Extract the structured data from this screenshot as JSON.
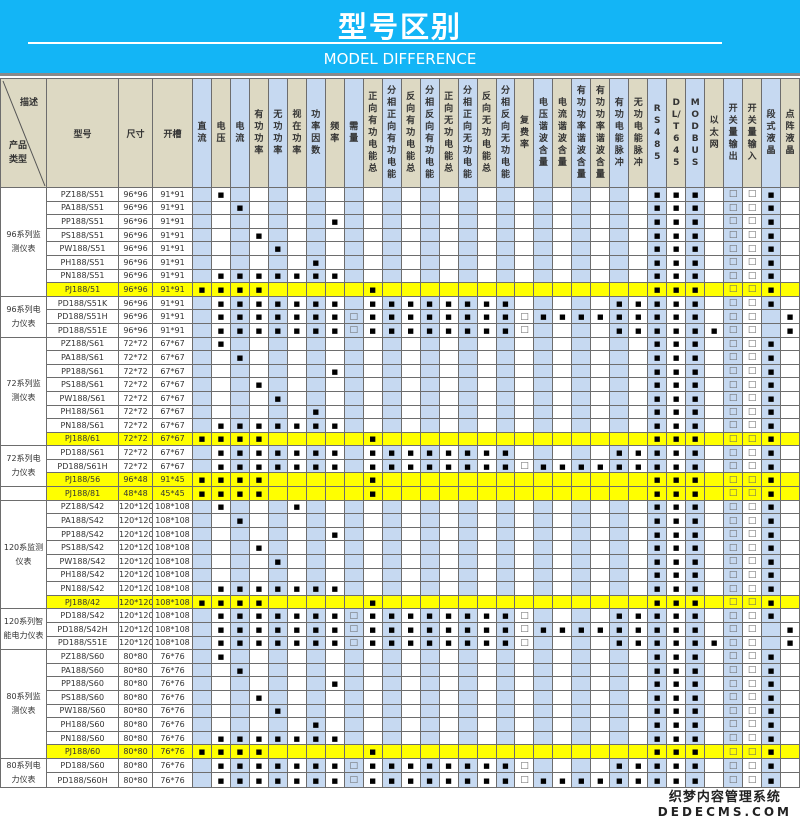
{
  "header": {
    "title": "型号区别",
    "subtitle": "MODEL DIFFERENCE"
  },
  "table": {
    "corner": {
      "description": "描述",
      "product_type": "产品类型"
    },
    "fixed_columns": [
      "型号",
      "尺寸",
      "开槽"
    ],
    "feature_columns": [
      "直流",
      "电压",
      "电流",
      "有功功率",
      "无功功率",
      "视在功率",
      "功率因数",
      "频率",
      "需量",
      "正向有功电能总",
      "分相正向有功电能",
      "反向有功电能总",
      "分相反向有功电能",
      "正向无功电能总",
      "分相正向无功电能",
      "反向无功电能总",
      "分相反向无功电能",
      "复费率",
      "电压谐波含量",
      "电流谐波含量",
      "有功功率谐波含量",
      "有功功率谐波含量",
      "有功电能脉冲",
      "无功电能脉冲",
      "RS485",
      "DL/T645",
      "MODBUS",
      "以太网",
      "开关量输出",
      "开关量输入",
      "段式液晶",
      "点阵液晶"
    ],
    "symbols": {
      "standard": "■",
      "optional": "□"
    },
    "colors": {
      "banner": "#13b5f6",
      "header": "#ddd9c3",
      "alt_column": "#c6d9f1",
      "highlight": "#ffff00"
    },
    "groups": [
      {
        "label": "96系列监测仪表",
        "rows": [
          {
            "model": "PZ188/S51",
            "size": "96*96",
            "cutout": "91*91",
            "std": [
              1,
              24,
              25,
              26,
              30
            ],
            "opt": [
              28,
              29
            ]
          },
          {
            "model": "PA188/S51",
            "size": "96*96",
            "cutout": "91*91",
            "std": [
              2,
              24,
              25,
              26,
              30
            ],
            "opt": [
              28,
              29
            ]
          },
          {
            "model": "PP188/S51",
            "size": "96*96",
            "cutout": "91*91",
            "std": [
              7,
              24,
              25,
              26,
              30
            ],
            "opt": [
              28,
              29
            ]
          },
          {
            "model": "PS188/S51",
            "size": "96*96",
            "cutout": "91*91",
            "std": [
              3,
              24,
              25,
              26,
              30
            ],
            "opt": [
              28,
              29
            ]
          },
          {
            "model": "PW188/S51",
            "size": "96*96",
            "cutout": "91*91",
            "std": [
              4,
              24,
              25,
              26,
              30
            ],
            "opt": [
              28,
              29
            ]
          },
          {
            "model": "PH188/S51",
            "size": "96*96",
            "cutout": "91*91",
            "std": [
              6,
              24,
              25,
              26,
              30
            ],
            "opt": [
              28,
              29
            ]
          },
          {
            "model": "PN188/S51",
            "size": "96*96",
            "cutout": "91*91",
            "std": [
              1,
              2,
              3,
              4,
              5,
              6,
              7,
              24,
              25,
              26,
              30
            ],
            "opt": [
              28,
              29
            ]
          },
          {
            "model": "PJ188/51",
            "size": "96*96",
            "cutout": "91*91",
            "highlight": true,
            "std": [
              0,
              1,
              2,
              3,
              9,
              24,
              25,
              26,
              30
            ],
            "opt": [
              28,
              29
            ]
          }
        ]
      },
      {
        "label": "96系列电力仪表",
        "rows": [
          {
            "model": "PD188/S51K",
            "size": "96*96",
            "cutout": "91*91",
            "std": [
              1,
              2,
              3,
              4,
              5,
              6,
              7,
              9,
              10,
              11,
              12,
              13,
              14,
              15,
              16,
              22,
              23,
              24,
              25,
              26,
              30
            ],
            "opt": [
              28,
              29
            ]
          },
          {
            "model": "PD188/S51H",
            "size": "96*96",
            "cutout": "91*91",
            "std": [
              1,
              2,
              3,
              4,
              5,
              6,
              7,
              9,
              10,
              11,
              12,
              13,
              14,
              15,
              16,
              18,
              19,
              20,
              21,
              22,
              23,
              24,
              25,
              26,
              31
            ],
            "opt": [
              8,
              17,
              28,
              29
            ]
          },
          {
            "model": "PD188/S51E",
            "size": "96*96",
            "cutout": "91*91",
            "std": [
              1,
              2,
              3,
              4,
              5,
              6,
              7,
              9,
              10,
              11,
              12,
              13,
              14,
              15,
              16,
              22,
              23,
              24,
              25,
              26,
              27,
              31
            ],
            "opt": [
              8,
              17,
              28,
              29
            ]
          }
        ]
      },
      {
        "label": "72系列监测仪表",
        "rows": [
          {
            "model": "PZ188/S61",
            "size": "72*72",
            "cutout": "67*67",
            "std": [
              1,
              24,
              25,
              26,
              30
            ],
            "opt": [
              28,
              29
            ]
          },
          {
            "model": "PA188/S61",
            "size": "72*72",
            "cutout": "67*67",
            "std": [
              2,
              24,
              25,
              26,
              30
            ],
            "opt": [
              28,
              29
            ]
          },
          {
            "model": "PP188/S61",
            "size": "72*72",
            "cutout": "67*67",
            "std": [
              7,
              24,
              25,
              26,
              30
            ],
            "opt": [
              28,
              29
            ]
          },
          {
            "model": "PS188/S61",
            "size": "72*72",
            "cutout": "67*67",
            "std": [
              3,
              24,
              25,
              26,
              30
            ],
            "opt": [
              28,
              29
            ]
          },
          {
            "model": "PW188/S61",
            "size": "72*72",
            "cutout": "67*67",
            "std": [
              4,
              24,
              25,
              26,
              30
            ],
            "opt": [
              28,
              29
            ]
          },
          {
            "model": "PH188/S61",
            "size": "72*72",
            "cutout": "67*67",
            "std": [
              6,
              24,
              25,
              26,
              30
            ],
            "opt": [
              28,
              29
            ]
          },
          {
            "model": "PN188/S61",
            "size": "72*72",
            "cutout": "67*67",
            "std": [
              1,
              2,
              3,
              4,
              5,
              6,
              7,
              24,
              25,
              26,
              30
            ],
            "opt": [
              28,
              29
            ]
          },
          {
            "model": "PJ188/61",
            "size": "72*72",
            "cutout": "67*67",
            "highlight": true,
            "std": [
              0,
              1,
              2,
              3,
              9,
              24,
              25,
              26,
              30
            ],
            "opt": [
              28,
              29
            ]
          }
        ]
      },
      {
        "label": "72系列电力仪表",
        "rows": [
          {
            "model": "PD188/S61",
            "size": "72*72",
            "cutout": "67*67",
            "std": [
              1,
              2,
              3,
              4,
              5,
              6,
              7,
              9,
              10,
              11,
              12,
              13,
              14,
              15,
              16,
              22,
              23,
              24,
              25,
              26,
              30
            ],
            "opt": [
              28,
              29
            ]
          },
          {
            "model": "PD188/S61H",
            "size": "72*72",
            "cutout": "67*67",
            "std": [
              1,
              2,
              3,
              4,
              5,
              6,
              7,
              9,
              10,
              11,
              12,
              13,
              14,
              15,
              16,
              18,
              19,
              20,
              21,
              22,
              23,
              24,
              25,
              26,
              30
            ],
            "opt": [
              17,
              28,
              29
            ]
          },
          {
            "model": "PJ188/56",
            "size": "96*48",
            "cutout": "91*45",
            "highlight": true,
            "std": [
              0,
              1,
              2,
              3,
              9,
              24,
              25,
              26,
              30
            ],
            "opt": [
              28,
              29
            ]
          }
        ]
      },
      {
        "label": "",
        "rows": [
          {
            "model": "PJ188/81",
            "size": "48*48",
            "cutout": "45*45",
            "highlight": true,
            "std": [
              0,
              1,
              2,
              3,
              9,
              24,
              25,
              26,
              30
            ],
            "opt": [
              28,
              29
            ]
          }
        ]
      },
      {
        "label": "120系监测仪表",
        "rows": [
          {
            "model": "PZ188/S42",
            "size": "120*120",
            "cutout": "108*108",
            "std": [
              1,
              5,
              24,
              25,
              26,
              30
            ],
            "opt": [
              28,
              29
            ]
          },
          {
            "model": "PA188/S42",
            "size": "120*120",
            "cutout": "108*108",
            "std": [
              2,
              24,
              25,
              26,
              30
            ],
            "opt": [
              28,
              29
            ]
          },
          {
            "model": "PP188/S42",
            "size": "120*120",
            "cutout": "108*108",
            "std": [
              7,
              24,
              25,
              26,
              30
            ],
            "opt": [
              28,
              29
            ]
          },
          {
            "model": "PS188/S42",
            "size": "120*120",
            "cutout": "108*108",
            "std": [
              3,
              24,
              25,
              26,
              30
            ],
            "opt": [
              28,
              29
            ]
          },
          {
            "model": "PW188/S42",
            "size": "120*120",
            "cutout": "108*108",
            "std": [
              4,
              24,
              25,
              26,
              30
            ],
            "opt": [
              28,
              29
            ]
          },
          {
            "model": "PH188/S42",
            "size": "120*120",
            "cutout": "108*108",
            "std": [
              24,
              25,
              26,
              30
            ],
            "opt": [
              28,
              29
            ]
          },
          {
            "model": "PN188/S42",
            "size": "120*120",
            "cutout": "108*108",
            "std": [
              1,
              2,
              3,
              4,
              5,
              6,
              7,
              24,
              25,
              26,
              30
            ],
            "opt": [
              28,
              29
            ]
          },
          {
            "model": "PJ188/42",
            "size": "120*120",
            "cutout": "108*108",
            "highlight": true,
            "std": [
              0,
              1,
              2,
              3,
              9,
              24,
              25,
              26,
              30
            ],
            "opt": [
              28,
              29
            ]
          }
        ]
      },
      {
        "label": "120系列智能电力仪表",
        "rows": [
          {
            "model": "PD188/S42",
            "size": "120*120",
            "cutout": "108*108",
            "std": [
              1,
              2,
              3,
              4,
              5,
              6,
              7,
              9,
              10,
              11,
              12,
              13,
              14,
              15,
              16,
              22,
              23,
              24,
              25,
              26,
              30
            ],
            "opt": [
              8,
              17,
              28,
              29
            ]
          },
          {
            "model": "PD188/S42H",
            "size": "120*120",
            "cutout": "108*108",
            "std": [
              1,
              2,
              3,
              4,
              5,
              6,
              7,
              9,
              10,
              11,
              12,
              13,
              14,
              15,
              16,
              18,
              19,
              20,
              21,
              22,
              23,
              24,
              25,
              26,
              31
            ],
            "opt": [
              8,
              17,
              28,
              29
            ]
          },
          {
            "model": "PD188/S51E",
            "size": "120*120",
            "cutout": "108*108",
            "std": [
              1,
              2,
              3,
              4,
              5,
              6,
              7,
              9,
              10,
              11,
              12,
              13,
              14,
              15,
              16,
              22,
              23,
              24,
              25,
              26,
              27,
              31
            ],
            "opt": [
              8,
              17,
              28,
              29
            ]
          }
        ]
      },
      {
        "label": "80系列监测仪表",
        "rows": [
          {
            "model": "PZ188/S60",
            "size": "80*80",
            "cutout": "76*76",
            "std": [
              1,
              24,
              25,
              26,
              30
            ],
            "opt": [
              28,
              29
            ]
          },
          {
            "model": "PA188/S60",
            "size": "80*80",
            "cutout": "76*76",
            "std": [
              2,
              24,
              25,
              26,
              30
            ],
            "opt": [
              28,
              29
            ]
          },
          {
            "model": "PP188/S60",
            "size": "80*80",
            "cutout": "76*76",
            "std": [
              7,
              24,
              25,
              26,
              30
            ],
            "opt": [
              28,
              29
            ]
          },
          {
            "model": "PS188/S60",
            "size": "80*80",
            "cutout": "76*76",
            "std": [
              3,
              24,
              25,
              26,
              30
            ],
            "opt": [
              28,
              29
            ]
          },
          {
            "model": "PW188/S60",
            "size": "80*80",
            "cutout": "76*76",
            "std": [
              4,
              24,
              25,
              26,
              30
            ],
            "opt": [
              28,
              29
            ]
          },
          {
            "model": "PH188/S60",
            "size": "80*80",
            "cutout": "76*76",
            "std": [
              6,
              24,
              25,
              26,
              30
            ],
            "opt": [
              28,
              29
            ]
          },
          {
            "model": "PN188/S60",
            "size": "80*80",
            "cutout": "76*76",
            "std": [
              1,
              2,
              3,
              4,
              5,
              6,
              7,
              24,
              25,
              26,
              30
            ],
            "opt": [
              28,
              29
            ]
          },
          {
            "model": "PJ188/60",
            "size": "80*80",
            "cutout": "76*76",
            "highlight": true,
            "std": [
              0,
              1,
              2,
              3,
              9,
              24,
              25,
              26,
              30
            ],
            "opt": [
              28,
              29
            ]
          }
        ]
      },
      {
        "label": "80系列电力仪表",
        "rows": [
          {
            "model": "PD188/S60",
            "size": "80*80",
            "cutout": "76*76",
            "std": [
              1,
              2,
              3,
              4,
              5,
              6,
              7,
              9,
              10,
              11,
              12,
              13,
              14,
              15,
              16,
              22,
              23,
              24,
              25,
              26,
              30
            ],
            "opt": [
              8,
              17,
              28,
              29
            ]
          },
          {
            "model": "PD188/S60H",
            "size": "80*80",
            "cutout": "76*76",
            "std": [
              1,
              2,
              3,
              4,
              5,
              6,
              7,
              9,
              10,
              11,
              12,
              13,
              14,
              15,
              16,
              18,
              19,
              20,
              21,
              22,
              23,
              24,
              25,
              26,
              30
            ],
            "opt": [
              8,
              17,
              28,
              29
            ]
          }
        ]
      }
    ]
  },
  "watermark": {
    "line1": "织梦内容管理系统",
    "line2": "DEDECMS.COM"
  }
}
